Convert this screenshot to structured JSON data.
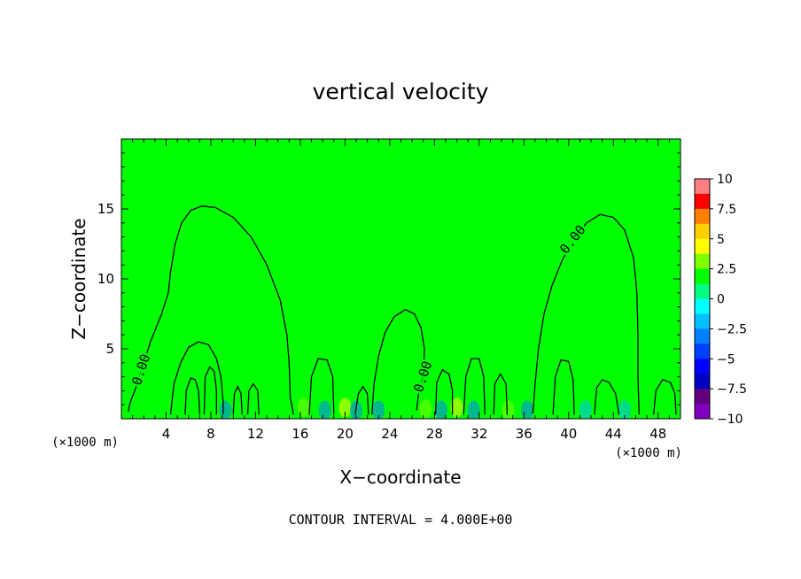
{
  "chart_data": {
    "type": "heatmap",
    "title": "vertical velocity",
    "xlabel": "X−coordinate",
    "ylabel": "Z−coordinate",
    "x_unit": "(×1000 m)",
    "y_unit": "(×1000 m)",
    "xlim": [
      0,
      50
    ],
    "ylim": [
      0,
      20
    ],
    "x_ticks": [
      4,
      8,
      12,
      16,
      20,
      24,
      28,
      32,
      36,
      40,
      44,
      48
    ],
    "y_ticks": [
      5,
      10,
      15
    ],
    "grid": false,
    "colorbar": {
      "placement": "right",
      "range": [
        -10,
        10
      ],
      "labels": [
        "10",
        "7.5",
        "5",
        "2.5",
        "0",
        "−2.5",
        "−5",
        "−7.5",
        "−10"
      ],
      "colors": [
        "#ff8080",
        "#ff0000",
        "#ff8000",
        "#ffd000",
        "#ffff00",
        "#80ff00",
        "#00ff00",
        "#00ff80",
        "#00ffff",
        "#00c0ff",
        "#0080ff",
        "#0040ff",
        "#0000ff",
        "#0000c0",
        "#600080",
        "#8000c0"
      ]
    },
    "background_color": "#00ff00",
    "contour_label": "0.00",
    "contour_interval_text": "CONTOUR INTERVAL = 4.000E+00",
    "contours": [
      {
        "label": "0.00",
        "points": [
          [
            0.6,
            0.5
          ],
          [
            0.8,
            1.2
          ],
          [
            1.2,
            2
          ],
          [
            1.8,
            3.5
          ],
          [
            2.6,
            5.5
          ],
          [
            3.6,
            7.5
          ],
          [
            4.2,
            9
          ],
          [
            4.4,
            10.5
          ],
          [
            4.8,
            12.5
          ],
          [
            5.4,
            14
          ],
          [
            6.2,
            14.9
          ],
          [
            7.2,
            15.2
          ],
          [
            8.4,
            15.1
          ],
          [
            10,
            14.4
          ],
          [
            11.6,
            13
          ],
          [
            13,
            11
          ],
          [
            14.2,
            8.5
          ],
          [
            14.8,
            6
          ],
          [
            15,
            4
          ],
          [
            15.1,
            1.5
          ],
          [
            15.4,
            0.3
          ]
        ]
      },
      {
        "label": "0.00",
        "points": [
          [
            22.4,
            0.3
          ],
          [
            22.6,
            2.5
          ],
          [
            23,
            4.5
          ],
          [
            23.6,
            6.2
          ],
          [
            24.4,
            7.3
          ],
          [
            25.4,
            7.8
          ],
          [
            26.2,
            7.5
          ],
          [
            26.8,
            6.5
          ],
          [
            27.1,
            5
          ],
          [
            27,
            3
          ],
          [
            26.6,
            2
          ],
          [
            26.4,
            0.6
          ]
        ]
      },
      {
        "label": "0.00",
        "points": [
          [
            36.8,
            0.4
          ],
          [
            37,
            2.5
          ],
          [
            37.3,
            5
          ],
          [
            37.8,
            7.5
          ],
          [
            38.5,
            9.5
          ],
          [
            39.4,
            11.3
          ],
          [
            40.4,
            12.8
          ],
          [
            41.6,
            14
          ],
          [
            42.8,
            14.6
          ],
          [
            44,
            14.4
          ],
          [
            45,
            13.5
          ],
          [
            45.8,
            11.5
          ],
          [
            46.1,
            9
          ],
          [
            46.2,
            6
          ],
          [
            46.2,
            3
          ],
          [
            46.3,
            0.3
          ]
        ]
      },
      {
        "points": [
          [
            4.4,
            0.3
          ],
          [
            4.7,
            2.5
          ],
          [
            5.3,
            4
          ],
          [
            6,
            5.1
          ],
          [
            6.9,
            5.5
          ],
          [
            7.8,
            5.3
          ],
          [
            8.5,
            4.3
          ],
          [
            8.9,
            3
          ],
          [
            9.1,
            1.2
          ],
          [
            9.1,
            0.3
          ]
        ]
      },
      {
        "points": [
          [
            5.7,
            0.3
          ],
          [
            5.8,
            2
          ],
          [
            6.2,
            2.9
          ],
          [
            6.6,
            2.8
          ],
          [
            6.9,
            2
          ],
          [
            7,
            0.3
          ]
        ]
      },
      {
        "points": [
          [
            7.4,
            0.3
          ],
          [
            7.5,
            3
          ],
          [
            7.9,
            3.7
          ],
          [
            8.3,
            3.4
          ],
          [
            8.5,
            2
          ],
          [
            8.5,
            0.3
          ]
        ]
      },
      {
        "points": [
          [
            10,
            0.3
          ],
          [
            10.1,
            1.8
          ],
          [
            10.4,
            2.3
          ],
          [
            10.7,
            1.8
          ],
          [
            10.8,
            0.3
          ]
        ]
      },
      {
        "points": [
          [
            11.3,
            0.3
          ],
          [
            11.4,
            2
          ],
          [
            11.8,
            2.5
          ],
          [
            12.2,
            2
          ],
          [
            12.3,
            0.3
          ]
        ]
      },
      {
        "points": [
          [
            16.8,
            0.3
          ],
          [
            17,
            3
          ],
          [
            17.6,
            4.3
          ],
          [
            18.4,
            4.2
          ],
          [
            18.9,
            3
          ],
          [
            19,
            0.3
          ]
        ]
      },
      {
        "points": [
          [
            20.9,
            0.3
          ],
          [
            21.2,
            1.8
          ],
          [
            21.6,
            2.3
          ],
          [
            22,
            1.8
          ],
          [
            22.1,
            0.3
          ]
        ]
      },
      {
        "points": [
          [
            28.1,
            0.3
          ],
          [
            28.2,
            2.6
          ],
          [
            28.7,
            3.5
          ],
          [
            29.3,
            3.2
          ],
          [
            29.6,
            2
          ],
          [
            29.6,
            0.3
          ]
        ]
      },
      {
        "points": [
          [
            30.6,
            0.3
          ],
          [
            30.8,
            3
          ],
          [
            31.3,
            4.3
          ],
          [
            32,
            4.3
          ],
          [
            32.4,
            3
          ],
          [
            32.5,
            0.3
          ]
        ]
      },
      {
        "points": [
          [
            33.3,
            0.3
          ],
          [
            33.4,
            2.5
          ],
          [
            33.9,
            3.2
          ],
          [
            34.4,
            2.5
          ],
          [
            34.5,
            0.3
          ]
        ]
      },
      {
        "points": [
          [
            38.6,
            0.3
          ],
          [
            38.8,
            3
          ],
          [
            39.3,
            4.2
          ],
          [
            40,
            4.1
          ],
          [
            40.4,
            2.8
          ],
          [
            40.5,
            0.3
          ]
        ]
      },
      {
        "points": [
          [
            42.3,
            0.3
          ],
          [
            42.5,
            2.2
          ],
          [
            43,
            2.8
          ],
          [
            43.6,
            2.6
          ],
          [
            44.2,
            1.8
          ],
          [
            44.5,
            0.3
          ]
        ]
      },
      {
        "points": [
          [
            47.6,
            0.3
          ],
          [
            47.8,
            2
          ],
          [
            48.4,
            2.8
          ],
          [
            49.1,
            2.6
          ],
          [
            49.5,
            1.8
          ],
          [
            49.6,
            0.3
          ]
        ]
      }
    ],
    "intensity_cells": [
      {
        "x": 7,
        "z": 0.6,
        "value": 2.0
      },
      {
        "x": 9.3,
        "z": 0.6,
        "value": -3.0
      },
      {
        "x": 16.3,
        "z": 0.8,
        "value": 3.5
      },
      {
        "x": 18.2,
        "z": 0.6,
        "value": -3.5
      },
      {
        "x": 20,
        "z": 0.8,
        "value": 4.5
      },
      {
        "x": 21,
        "z": 0.6,
        "value": -3.0
      },
      {
        "x": 23,
        "z": 0.6,
        "value": -2.5
      },
      {
        "x": 27.2,
        "z": 0.7,
        "value": 3.0
      },
      {
        "x": 28.6,
        "z": 0.6,
        "value": -3.0
      },
      {
        "x": 30,
        "z": 0.8,
        "value": 4.0
      },
      {
        "x": 31.5,
        "z": 0.6,
        "value": -3.0
      },
      {
        "x": 34.6,
        "z": 0.6,
        "value": 3.0
      },
      {
        "x": 36.3,
        "z": 0.6,
        "value": -2.5
      },
      {
        "x": 41.5,
        "z": 0.6,
        "value": -2.0
      },
      {
        "x": 45,
        "z": 0.6,
        "value": -2.0
      },
      {
        "x": 47,
        "z": 0.6,
        "value": 2.0
      }
    ]
  }
}
